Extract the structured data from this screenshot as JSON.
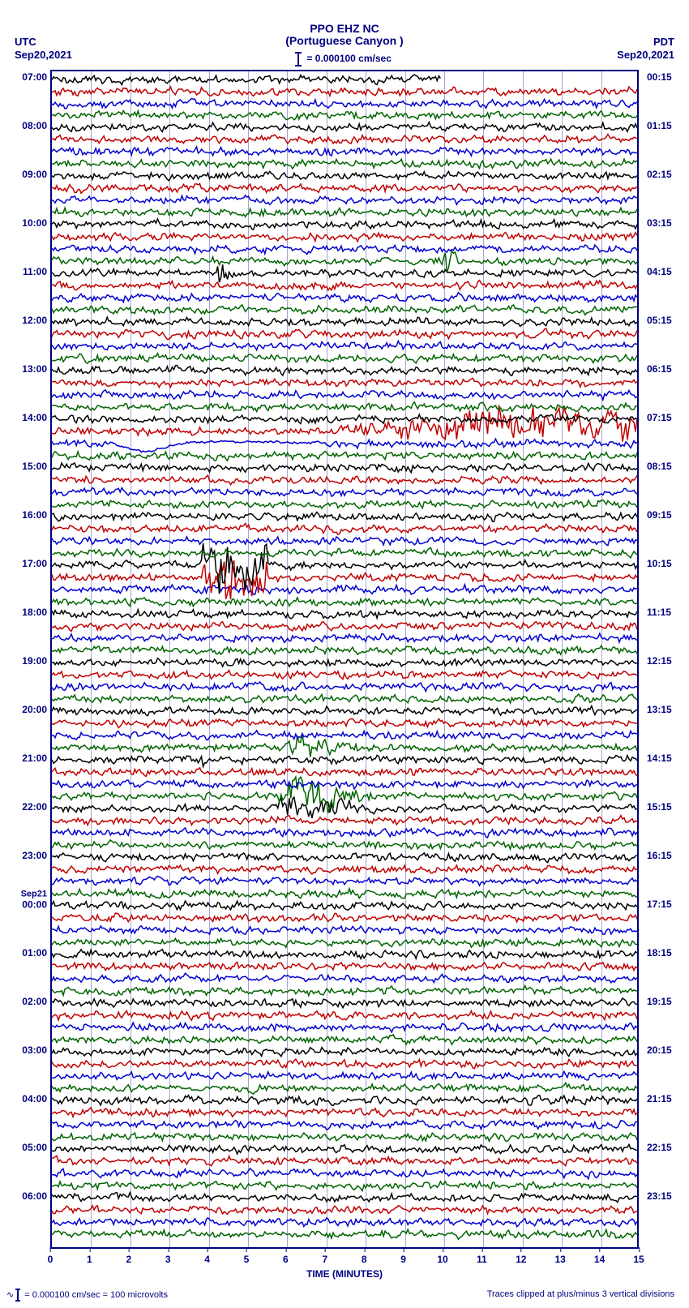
{
  "header": {
    "station_code": "PPO EHZ NC",
    "station_name": "(Portuguese Canyon )",
    "scale_text": " = 0.000100 cm/sec",
    "tz_left": "UTC",
    "tz_right": "PDT",
    "date_left": "Sep20,2021",
    "date_right": "Sep20,2021"
  },
  "plot": {
    "bg_color": "#ffffff",
    "border_color": "#000080",
    "grid_color": "#8080c0",
    "x_minutes": 15,
    "x_ticks": [
      "0",
      "1",
      "2",
      "3",
      "4",
      "5",
      "6",
      "7",
      "8",
      "9",
      "10",
      "11",
      "12",
      "13",
      "14",
      "15"
    ],
    "x_title": "TIME (MINUTES)",
    "n_traces": 96,
    "trace_colors_cycle": [
      "#000000",
      "#c00000",
      "#0000d0",
      "#006400"
    ],
    "base_noise_amp": 4.2,
    "events": [
      {
        "trace_index": 15,
        "start_min": 10,
        "end_min": 11,
        "amp": 22,
        "shape": "spike"
      },
      {
        "trace_index": 16,
        "start_min": 4.2,
        "end_min": 5.0,
        "amp": 20,
        "shape": "spike"
      },
      {
        "trace_index": 29,
        "start_min": 7.0,
        "end_min": 15.0,
        "amp": 18,
        "shape": "ramp_up_saturate"
      },
      {
        "trace_index": 30,
        "start_min": 1.5,
        "end_min": 7.0,
        "amp": 15,
        "shape": "dip_recover"
      },
      {
        "trace_index": 40,
        "start_min": 3.8,
        "end_min": 5.5,
        "amp": 30,
        "shape": "block"
      },
      {
        "trace_index": 41,
        "start_min": 3.8,
        "end_min": 5.5,
        "amp": 25,
        "shape": "block"
      },
      {
        "trace_index": 55,
        "start_min": 6.0,
        "end_min": 8.0,
        "amp": 16,
        "shape": "burst"
      },
      {
        "trace_index": 56,
        "start_min": 3.8,
        "end_min": 4.0,
        "amp": 18,
        "shape": "spike"
      },
      {
        "trace_index": 59,
        "start_min": 5.8,
        "end_min": 8.5,
        "amp": 20,
        "shape": "burst"
      },
      {
        "trace_index": 60,
        "start_min": 5.8,
        "end_min": 8.5,
        "amp": 18,
        "shape": "burst"
      },
      {
        "trace_index": 80,
        "start_min": 7.0,
        "end_min": 7.2,
        "amp": 14,
        "shape": "spike"
      }
    ],
    "first_trace_gap": {
      "start_min": 10.0,
      "end_min": 15.0
    }
  },
  "y_left": {
    "day_change_label": "Sep21",
    "labels": [
      {
        "row": 0,
        "text": "07:00"
      },
      {
        "row": 4,
        "text": "08:00"
      },
      {
        "row": 8,
        "text": "09:00"
      },
      {
        "row": 12,
        "text": "10:00"
      },
      {
        "row": 16,
        "text": "11:00"
      },
      {
        "row": 20,
        "text": "12:00"
      },
      {
        "row": 24,
        "text": "13:00"
      },
      {
        "row": 28,
        "text": "14:00"
      },
      {
        "row": 32,
        "text": "15:00"
      },
      {
        "row": 36,
        "text": "16:00"
      },
      {
        "row": 40,
        "text": "17:00"
      },
      {
        "row": 44,
        "text": "18:00"
      },
      {
        "row": 48,
        "text": "19:00"
      },
      {
        "row": 52,
        "text": "20:00"
      },
      {
        "row": 56,
        "text": "21:00"
      },
      {
        "row": 60,
        "text": "22:00"
      },
      {
        "row": 64,
        "text": "23:00"
      },
      {
        "row": 68,
        "text": "00:00",
        "daychange": true
      },
      {
        "row": 72,
        "text": "01:00"
      },
      {
        "row": 76,
        "text": "02:00"
      },
      {
        "row": 80,
        "text": "03:00"
      },
      {
        "row": 84,
        "text": "04:00"
      },
      {
        "row": 88,
        "text": "05:00"
      },
      {
        "row": 92,
        "text": "06:00"
      }
    ]
  },
  "y_right": {
    "labels": [
      {
        "row": 0,
        "text": "00:15"
      },
      {
        "row": 4,
        "text": "01:15"
      },
      {
        "row": 8,
        "text": "02:15"
      },
      {
        "row": 12,
        "text": "03:15"
      },
      {
        "row": 16,
        "text": "04:15"
      },
      {
        "row": 20,
        "text": "05:15"
      },
      {
        "row": 24,
        "text": "06:15"
      },
      {
        "row": 28,
        "text": "07:15"
      },
      {
        "row": 32,
        "text": "08:15"
      },
      {
        "row": 36,
        "text": "09:15"
      },
      {
        "row": 40,
        "text": "10:15"
      },
      {
        "row": 44,
        "text": "11:15"
      },
      {
        "row": 48,
        "text": "12:15"
      },
      {
        "row": 52,
        "text": "13:15"
      },
      {
        "row": 56,
        "text": "14:15"
      },
      {
        "row": 60,
        "text": "15:15"
      },
      {
        "row": 64,
        "text": "16:15"
      },
      {
        "row": 68,
        "text": "17:15"
      },
      {
        "row": 72,
        "text": "18:15"
      },
      {
        "row": 76,
        "text": "19:15"
      },
      {
        "row": 80,
        "text": "20:15"
      },
      {
        "row": 84,
        "text": "21:15"
      },
      {
        "row": 88,
        "text": "22:15"
      },
      {
        "row": 92,
        "text": "23:15"
      }
    ]
  },
  "footer": {
    "left": " = 0.000100 cm/sec =    100 microvolts",
    "right": "Traces clipped at plus/minus 3 vertical divisions"
  }
}
